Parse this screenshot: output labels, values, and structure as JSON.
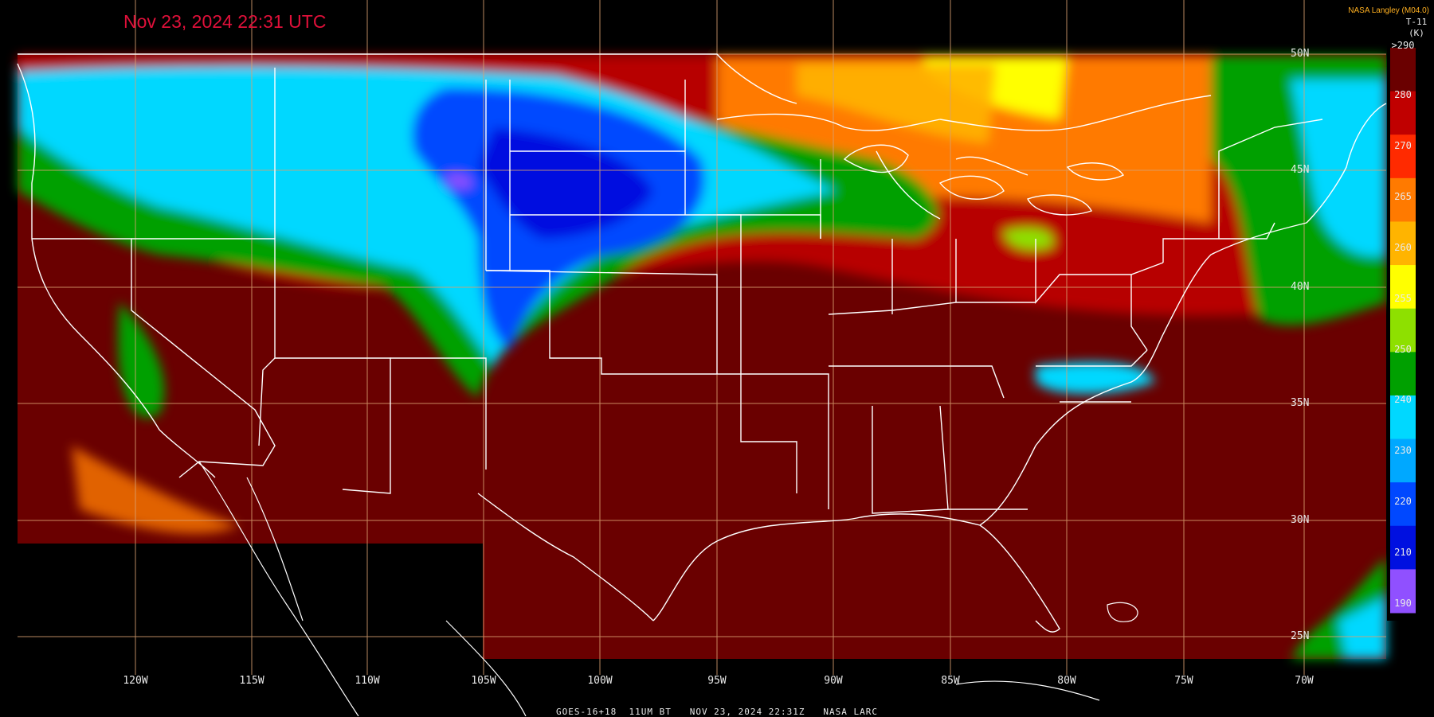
{
  "timestamp": "Nov 23, 2024 22:31 UTC",
  "credit": "NASA Langley (M04.0)",
  "footer": "GOES-16+18  11UM BT   NOV 23, 2024 22:31Z   NASA LARC",
  "colorbar": {
    "channel": "T-11",
    "unit": "(K)",
    "top_label": ">290",
    "tick_labels": [
      "280",
      "270",
      "265",
      "260",
      "255",
      "250",
      "240",
      "230",
      "220",
      "210",
      "190"
    ],
    "colors": [
      "#6a0000",
      "#c00000",
      "#ff2a00",
      "#ff7a00",
      "#ffb400",
      "#ffff00",
      "#8ee000",
      "#00a000",
      "#00d8ff",
      "#00a8ff",
      "#0048ff",
      "#0010e0",
      "#9050ff"
    ]
  },
  "longitude_labels": [
    "120W",
    "115W",
    "110W",
    "105W",
    "100W",
    "95W",
    "90W",
    "85W",
    "80W",
    "75W",
    "70W"
  ],
  "latitude_labels": [
    "50N",
    "45N",
    "40N",
    "35N",
    "30N",
    "25N"
  ],
  "regions": {
    "cold_north": "blue/cyan cold cloud tops over northern plains and rockies",
    "warm_south": "dark red clear warm ground across southern US"
  }
}
